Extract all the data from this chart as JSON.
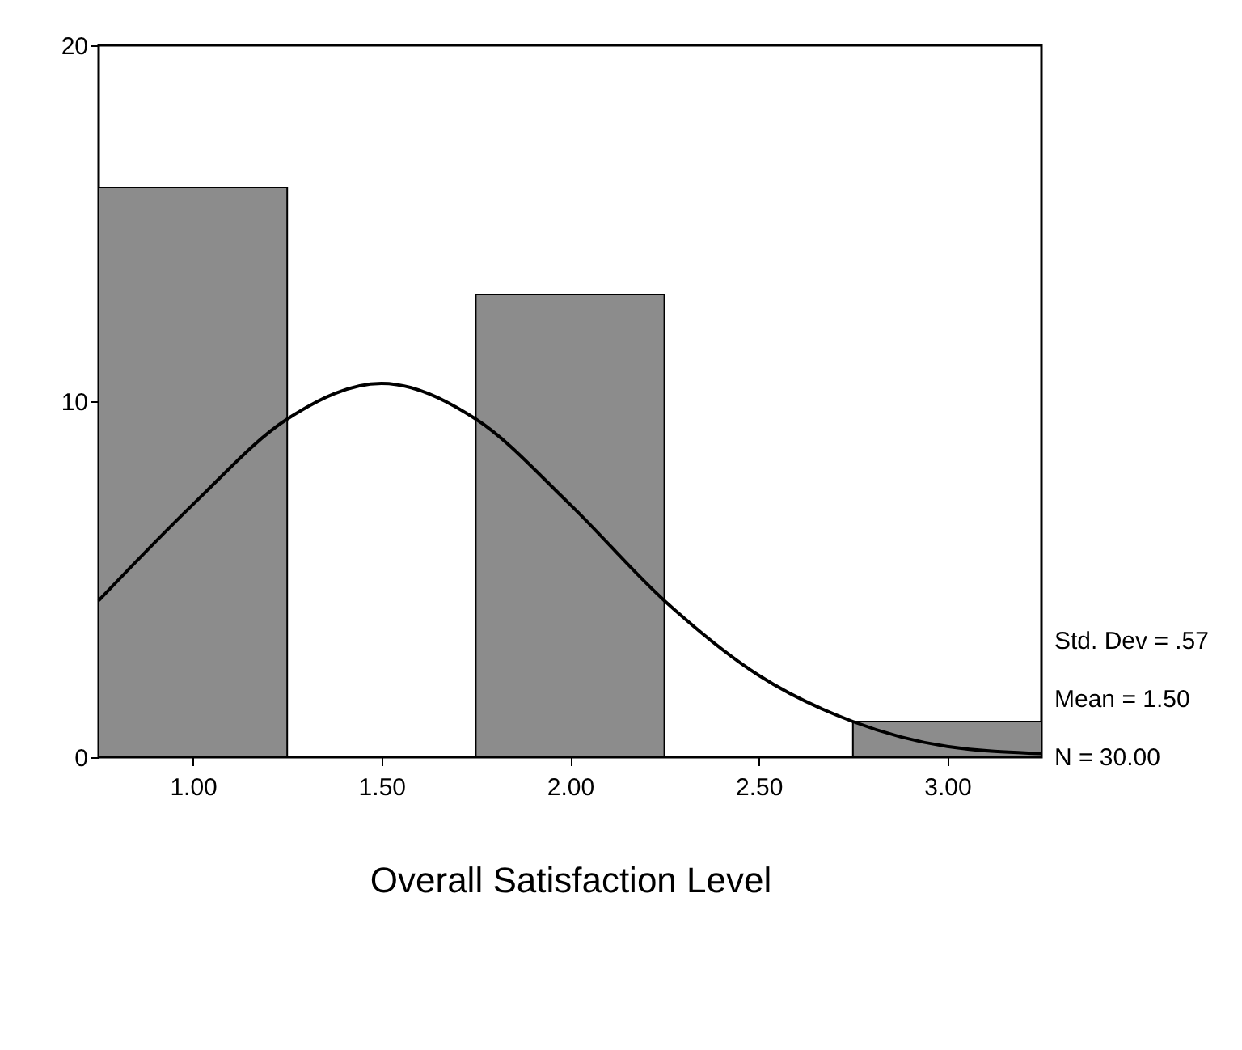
{
  "chart_data": {
    "type": "histogram",
    "xlabel": "Overall Satisfaction Level",
    "bins": [
      0.75,
      1.25,
      1.75,
      2.25,
      2.75,
      3.25
    ],
    "values": [
      16,
      0,
      13,
      0,
      1
    ],
    "color": "#8c8c8c",
    "series": [
      {
        "type": "line",
        "color": "#000000",
        "x": [
          0.75,
          1.0,
          1.25,
          1.5,
          1.75,
          2.0,
          2.25,
          2.5,
          2.75,
          3.0,
          3.25
        ],
        "values": [
          4.4,
          7.1,
          9.5,
          10.5,
          9.5,
          7.1,
          4.4,
          2.3,
          1.0,
          0.3,
          0.1
        ]
      }
    ],
    "xlim": [
      0.75,
      3.25
    ],
    "xticks": [
      {
        "value": 1,
        "label": "1.00"
      },
      {
        "value": 1.5,
        "label": "1.50"
      },
      {
        "value": 2,
        "label": "2.00"
      },
      {
        "value": 2.5,
        "label": "2.50"
      },
      {
        "value": 3,
        "label": "3.00"
      }
    ],
    "ylim": [
      0,
      20
    ],
    "yticks": [
      0,
      10,
      20
    ],
    "grid": false,
    "annotations": [
      "Std. Dev = .57",
      "Mean = 1.50",
      "N = 30.00"
    ]
  }
}
